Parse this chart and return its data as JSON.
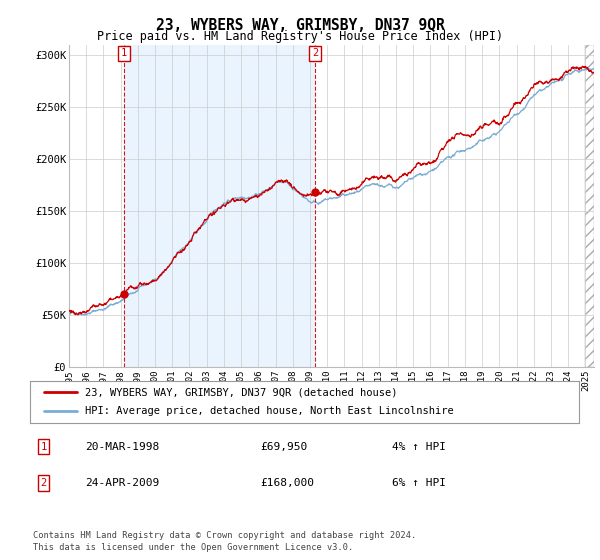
{
  "title": "23, WYBERS WAY, GRIMSBY, DN37 9QR",
  "subtitle": "Price paid vs. HM Land Registry's House Price Index (HPI)",
  "sale1": {
    "date": "20-MAR-1998",
    "price": 69950,
    "label": "1",
    "hpi_pct": "4% ↑ HPI"
  },
  "sale2": {
    "date": "24-APR-2009",
    "price": 168000,
    "label": "2",
    "hpi_pct": "6% ↑ HPI"
  },
  "legend_line1": "23, WYBERS WAY, GRIMSBY, DN37 9QR (detached house)",
  "legend_line2": "HPI: Average price, detached house, North East Lincolnshire",
  "footer1": "Contains HM Land Registry data © Crown copyright and database right 2024.",
  "footer2": "This data is licensed under the Open Government Licence v3.0.",
  "line_color_red": "#cc0000",
  "line_color_blue": "#7aadd4",
  "shade_color": "#ddeeff",
  "marker_color_red": "#cc0000",
  "vline_color": "#cc0000",
  "box_color": "#cc0000",
  "background_color": "#ffffff",
  "grid_color": "#cccccc",
  "ylabel_values": [
    "£0",
    "£50K",
    "£100K",
    "£150K",
    "£200K",
    "£250K",
    "£300K"
  ],
  "ylim": [
    0,
    310000
  ],
  "xlim_start": 1995.0,
  "xlim_end": 2025.5,
  "sale1_t": 1998.208,
  "sale2_t": 2009.292
}
